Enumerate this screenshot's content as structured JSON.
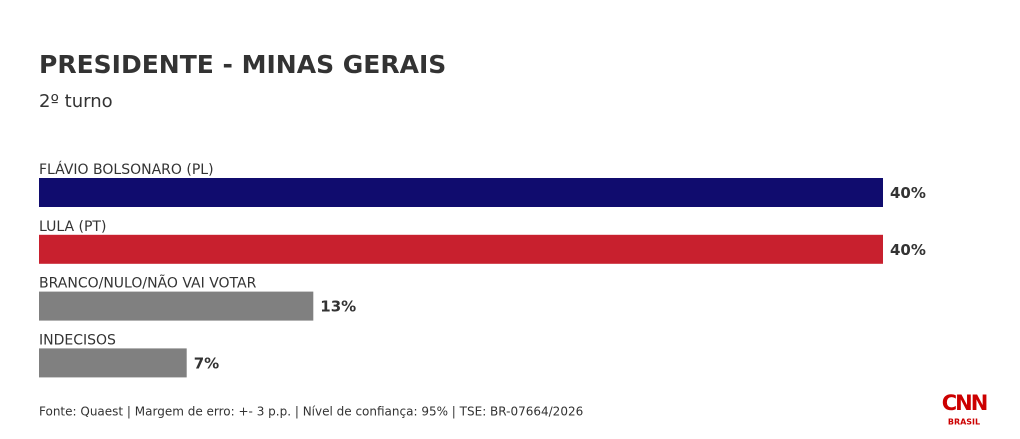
{
  "chart_data": {
    "type": "bar",
    "title": "PRESIDENTE - MINAS GERAIS",
    "subtitle": "2º turno",
    "categories": [
      "FLÁVIO BOLSONARO (PL)",
      "LULA (PT)",
      "BRANCO/NULO/NÃO VAI VOTAR",
      "INDECISOS"
    ],
    "values": [
      40,
      40,
      13,
      7
    ],
    "value_labels": [
      "40%",
      "40%",
      "13%",
      "7%"
    ],
    "colors": [
      "#100c6e",
      "#c8202e",
      "#808080",
      "#808080"
    ],
    "source": "Fonte: Quaest | Margem de erro: +- 3 p.p. | Nível de confiança: 95% | TSE: BR-07664/2026",
    "brand": "CNN",
    "brand_sub": "BRASIL"
  }
}
